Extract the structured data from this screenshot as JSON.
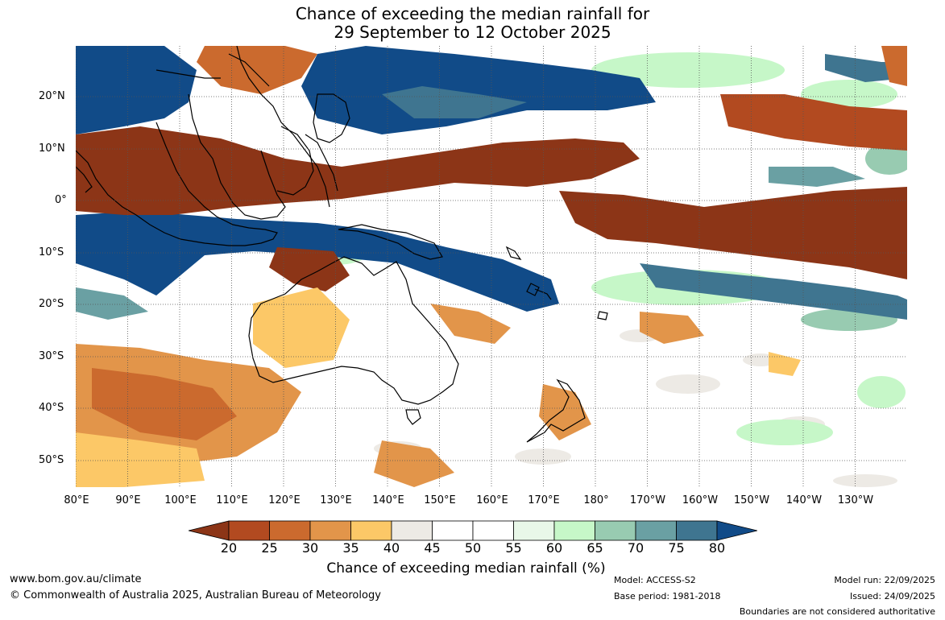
{
  "title": {
    "line1": "Chance of exceeding the median rainfall for",
    "line2": "29 September to 12 October 2025"
  },
  "lat_labels": [
    "20°N",
    "10°N",
    "0°",
    "10°S",
    "20°S",
    "30°S",
    "40°S",
    "50°S"
  ],
  "lon_labels": [
    "80°E",
    "90°E",
    "100°E",
    "110°E",
    "120°E",
    "130°E",
    "140°E",
    "150°E",
    "160°E",
    "170°E",
    "180°",
    "170°W",
    "160°W",
    "150°W",
    "140°W",
    "130°W"
  ],
  "colorbar": {
    "title": "Chance of exceeding median rainfall (%)",
    "ticks": [
      "20",
      "25",
      "30",
      "35",
      "40",
      "45",
      "50",
      "55",
      "60",
      "65",
      "70",
      "75",
      "80"
    ],
    "colors": [
      "#8c3517",
      "#b24a20",
      "#cb6a2e",
      "#e2954a",
      "#fcc867",
      "#edeae5",
      "#ffffff",
      "#ffffff",
      "#e8f7e8",
      "#c6f7c8",
      "#98cbb1",
      "#6aa0a3",
      "#3f7590",
      "#114b88"
    ]
  },
  "footer": {
    "url": "www.bom.gov.au/climate",
    "copyright": "© Commonwealth of Australia 2025, Australian Bureau of Meteorology",
    "model": "Model: ACCESS-S2",
    "base_period": "Base period: 1981-2018",
    "model_run": "Model run: 22/09/2025",
    "issued": "Issued: 24/09/2025",
    "disclaimer": "Boundaries are not considered authoritative"
  }
}
